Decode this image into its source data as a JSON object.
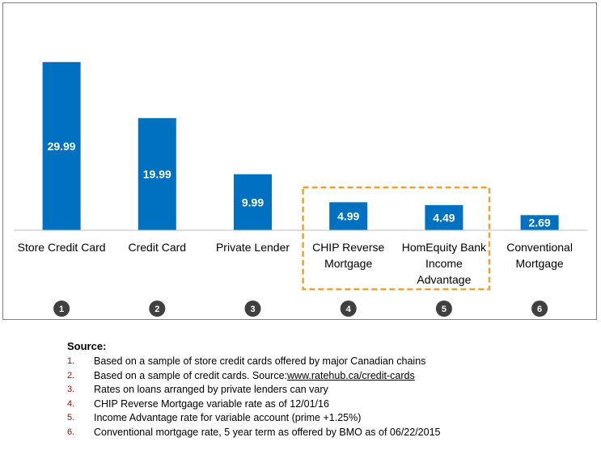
{
  "chart_data": {
    "type": "bar",
    "title": "",
    "xlabel": "",
    "ylabel": "",
    "ylim": [
      0,
      35
    ],
    "grid": false,
    "legend": "none",
    "bar_color": "#0070c0",
    "categories": [
      [
        "Store Credit Card"
      ],
      [
        "Credit Card"
      ],
      [
        "Private Lender"
      ],
      [
        "CHIP Reverse",
        "Mortgage"
      ],
      [
        "HomEquity Bank",
        "Income",
        "Advantage"
      ],
      [
        "Conventional",
        "Mortgage"
      ]
    ],
    "values": [
      29.99,
      19.99,
      9.99,
      4.99,
      4.49,
      2.69
    ],
    "value_labels": [
      "29.99",
      "19.99",
      "9.99",
      "4.99",
      "4.49",
      "2.69"
    ],
    "footnote_markers": [
      "1",
      "2",
      "3",
      "4",
      "5",
      "6"
    ],
    "highlight": {
      "categories": [
        3,
        4
      ],
      "style": "dashed-box",
      "color": "#f0a030"
    }
  },
  "source": {
    "heading": "Source:",
    "items": [
      {
        "num": "1.",
        "text": "Based on a sample of store credit cards offered by major Canadian chains",
        "link": ""
      },
      {
        "num": "2.",
        "text": "Based on a sample of credit cards. Source: ",
        "link": "www.ratehub.ca/credit-cards"
      },
      {
        "num": "3.",
        "text": "Rates on loans arranged by private lenders can vary",
        "link": ""
      },
      {
        "num": "4.",
        "text": "CHIP Reverse Mortgage variable rate as of 12/01/16",
        "link": ""
      },
      {
        "num": "5.",
        "text": "Income Advantage rate for variable account (prime +1.25%)",
        "link": ""
      },
      {
        "num": "6.",
        "text": "Conventional mortgage rate, 5 year term as offered by BMO as of 06/22/2015",
        "link": ""
      }
    ]
  },
  "colors": {
    "bar": "#0070c0",
    "highlight_border": "#f0a030",
    "marker_circle": "#404040",
    "footnote_number": "#c00000",
    "frame_border": "#808080"
  }
}
